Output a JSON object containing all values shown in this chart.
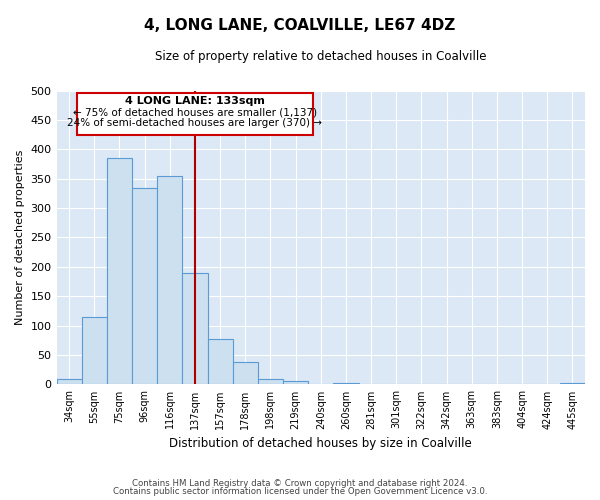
{
  "title": "4, LONG LANE, COALVILLE, LE67 4DZ",
  "subtitle": "Size of property relative to detached houses in Coalville",
  "xlabel": "Distribution of detached houses by size in Coalville",
  "ylabel": "Number of detached properties",
  "bar_color_face": "#cce0f0",
  "bar_color_edge": "#5b9bd5",
  "background_color": "#dce8f5",
  "categories": [
    "34sqm",
    "55sqm",
    "75sqm",
    "96sqm",
    "116sqm",
    "137sqm",
    "157sqm",
    "178sqm",
    "198sqm",
    "219sqm",
    "240sqm",
    "260sqm",
    "281sqm",
    "301sqm",
    "322sqm",
    "342sqm",
    "363sqm",
    "383sqm",
    "404sqm",
    "424sqm",
    "445sqm"
  ],
  "values": [
    10,
    115,
    385,
    335,
    355,
    190,
    77,
    38,
    10,
    5,
    0,
    2,
    0,
    1,
    0,
    0,
    0,
    0,
    0,
    0,
    2
  ],
  "vline_x": 5.0,
  "vline_color": "#aa0000",
  "annotation_title": "4 LONG LANE: 133sqm",
  "annotation_line1": "← 75% of detached houses are smaller (1,137)",
  "annotation_line2": "24% of semi-detached houses are larger (370) →",
  "annotation_box_color": "#ffffff",
  "annotation_box_edge": "#cc0000",
  "ylim": [
    0,
    500
  ],
  "yticks": [
    0,
    50,
    100,
    150,
    200,
    250,
    300,
    350,
    400,
    450,
    500
  ],
  "footer_line1": "Contains HM Land Registry data © Crown copyright and database right 2024.",
  "footer_line2": "Contains public sector information licensed under the Open Government Licence v3.0."
}
